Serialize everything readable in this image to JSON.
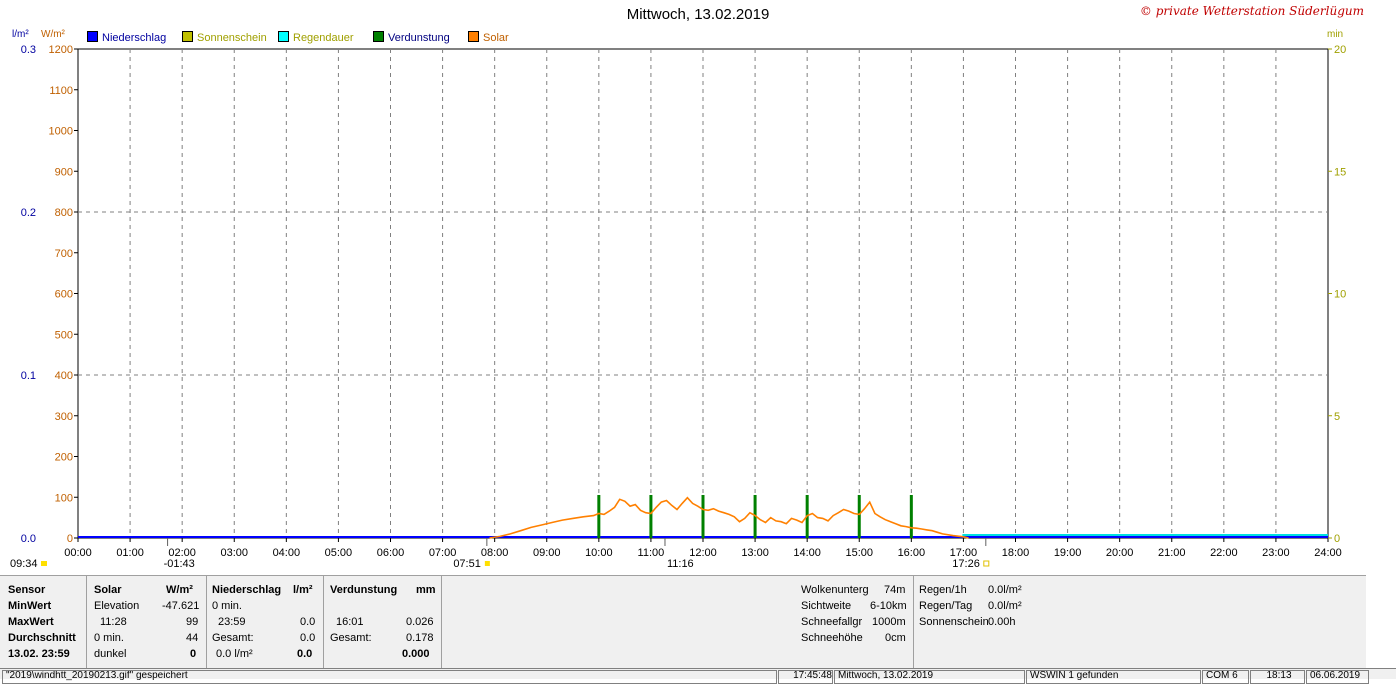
{
  "title": "Mittwoch, 13.02.2019",
  "brand": "© private Wetterstation Süderlügum",
  "colors": {
    "rain": "#0000ff",
    "sun": "#b8b800",
    "raindur": "#00e0e0",
    "evap": "#008000",
    "solar": "#ff8000",
    "grid": "#808080"
  },
  "legend": [
    {
      "label": "Niederschlag",
      "color": "#0000ff",
      "text_color": "#0000a0"
    },
    {
      "label": "Sonnenschein",
      "color": "#c0c000",
      "text_color": "#a0a000"
    },
    {
      "label": "Regendauer",
      "color": "#00ffff",
      "text_color": "#a0a000"
    },
    {
      "label": "Verdunstung",
      "color": "#008000",
      "text_color": "#000080"
    },
    {
      "label": "Solar",
      "color": "#ff8000",
      "text_color": "#c06000"
    }
  ],
  "axis_units": {
    "left1": "l/m²",
    "left2": "W/m²",
    "right": "min"
  },
  "markers": {
    "left_time": "09:34",
    "t1": "-01:43",
    "t2": "07:51",
    "t3": "11:16",
    "t4": "17:26"
  },
  "chart_data": {
    "type": "line",
    "x_ticks": [
      "00:00",
      "01:00",
      "02:00",
      "03:00",
      "04:00",
      "05:00",
      "06:00",
      "07:00",
      "08:00",
      "09:00",
      "10:00",
      "11:00",
      "12:00",
      "13:00",
      "14:00",
      "15:00",
      "16:00",
      "17:00",
      "18:00",
      "19:00",
      "20:00",
      "21:00",
      "22:00",
      "23:00",
      "24:00"
    ],
    "xlim": [
      0,
      24
    ],
    "y_rain": {
      "ticks": [
        "0.0",
        "0.1",
        "0.2",
        "0.3"
      ],
      "ylim": [
        0,
        0.3
      ]
    },
    "y_solar": {
      "ticks": [
        "0",
        "100",
        "200",
        "300",
        "400",
        "500",
        "600",
        "700",
        "800",
        "900",
        "1000",
        "1100",
        "1200"
      ],
      "ylim": [
        0,
        1200
      ]
    },
    "y_min": {
      "ticks": [
        "0",
        "5",
        "10",
        "15",
        "20"
      ],
      "ylim": [
        0,
        20
      ]
    },
    "series": [
      {
        "name": "Solar",
        "values_x": [
          7.9,
          8.1,
          8.3,
          8.5,
          8.7,
          8.9,
          9.1,
          9.3,
          9.5,
          9.7,
          9.9,
          10.0,
          10.1,
          10.2,
          10.3,
          10.4,
          10.5,
          10.6,
          10.7,
          10.8,
          10.9,
          11.0,
          11.1,
          11.2,
          11.3,
          11.4,
          11.5,
          11.6,
          11.7,
          11.8,
          11.9,
          12.0,
          12.1,
          12.2,
          12.3,
          12.4,
          12.5,
          12.6,
          12.7,
          12.8,
          12.9,
          13.0,
          13.1,
          13.2,
          13.3,
          13.4,
          13.5,
          13.6,
          13.7,
          13.8,
          13.9,
          14.0,
          14.1,
          14.2,
          14.3,
          14.4,
          14.5,
          14.6,
          14.7,
          14.8,
          14.9,
          15.0,
          15.1,
          15.2,
          15.3,
          15.4,
          15.5,
          15.6,
          15.7,
          15.8,
          15.9,
          16.0,
          16.1,
          16.2,
          16.3,
          16.4,
          16.5,
          16.6,
          16.8,
          17.0,
          17.1
        ],
        "values_y": [
          0,
          4,
          10,
          18,
          26,
          32,
          38,
          44,
          48,
          52,
          55,
          60,
          58,
          66,
          75,
          95,
          90,
          78,
          82,
          68,
          62,
          60,
          75,
          88,
          92,
          80,
          70,
          85,
          99,
          85,
          78,
          70,
          68,
          72,
          66,
          62,
          58,
          52,
          40,
          48,
          62,
          55,
          45,
          38,
          50,
          42,
          40,
          35,
          48,
          44,
          38,
          55,
          60,
          50,
          48,
          42,
          55,
          62,
          70,
          66,
          60,
          58,
          72,
          88,
          60,
          52,
          45,
          40,
          35,
          30,
          28,
          25,
          24,
          22,
          20,
          18,
          14,
          10,
          6,
          3,
          0
        ]
      },
      {
        "name": "Verdunstung",
        "values_x": [
          10.0,
          11.0,
          12.0,
          13.0,
          14.0,
          15.0,
          16.0
        ],
        "values_y": [
          0.026,
          0.026,
          0.026,
          0.026,
          0.026,
          0.026,
          0.026
        ]
      },
      {
        "name": "Niederschlag",
        "values_x": [
          0,
          24
        ],
        "values_y": [
          0,
          0
        ]
      }
    ]
  },
  "panel": {
    "sensor": {
      "header": "Sensor",
      "rows": [
        "MinWert",
        "MaxWert",
        "Durchschnitt",
        "13.02. 23:59"
      ]
    },
    "solar": {
      "header": "Solar",
      "unit": "W/m²",
      "r1a": "Elevation",
      "r1b": "-47.621",
      "r2a": "11:28",
      "r2b": "99",
      "r3a": "0 min.",
      "r3b": "44",
      "r4a": "dunkel",
      "r4b": "0"
    },
    "rain": {
      "header": "Niederschlag",
      "unit": "l/m²",
      "r1a": "0 min.",
      "r2a": "23:59",
      "r2b": "0.0",
      "r3a": "Gesamt:",
      "r3b": "0.0",
      "r4a": "0.0 l/m²",
      "r4b": "0.0"
    },
    "evap": {
      "header": "Verdunstung",
      "unit": "mm",
      "r2a": "16:01",
      "r2b": "0.026",
      "r3a": "Gesamt:",
      "r3b": "0.178",
      "r4b": "0.000"
    },
    "cloud": [
      {
        "label": "Wolkenunterg",
        "value": "74m"
      },
      {
        "label": "Sichtweite",
        "value": "6-10km"
      },
      {
        "label": "Schneefallgr",
        "value": "1000m"
      },
      {
        "label": "Schneehöhe",
        "value": "0cm"
      }
    ],
    "rainstat": [
      {
        "label": "Regen/1h",
        "value": "0.0l/m²"
      },
      {
        "label": "Regen/Tag",
        "value": "0.0l/m²"
      },
      {
        "label": "Sonnenschein",
        "value": "0.00h"
      }
    ]
  },
  "status": {
    "file": "\"2019\\windhtt_20190213.gif\" gespeichert",
    "time": "17:45:48",
    "date": "Mittwoch, 13.02.2019",
    "found": "WSWIN 1 gefunden",
    "com": "COM 6",
    "clock": "18:13",
    "today": "06.06.2019"
  }
}
